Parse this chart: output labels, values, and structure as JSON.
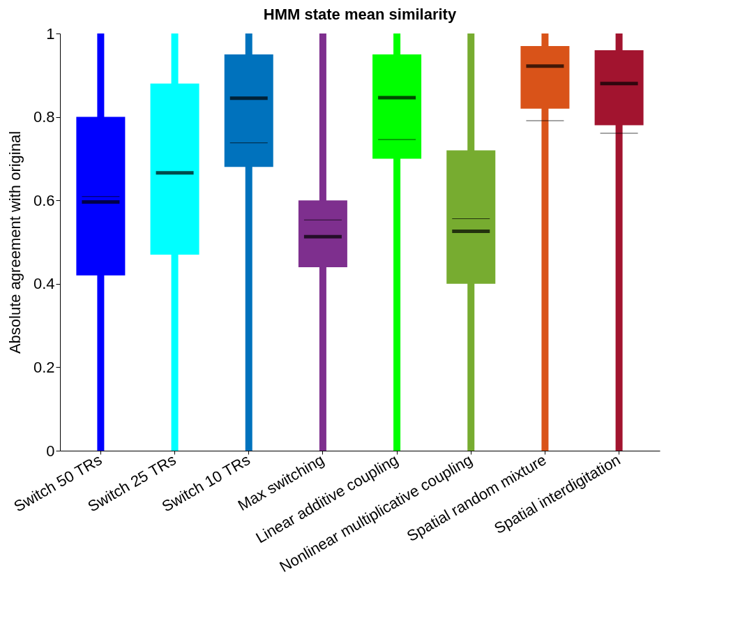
{
  "chart_data": {
    "type": "box",
    "title": "HMM state mean similarity",
    "ylabel": "Absolute agreement with original",
    "categories": [
      "Switch 50 TRs",
      "Switch 25 TRs",
      "Switch 10 TRs",
      "Max switching",
      "Linear additive coupling",
      "Nonlinear multiplicative coupling",
      "Spatial random mixture",
      "Spatial interdigitation"
    ],
    "colors": [
      "#0000ff",
      "#00ffff",
      "#0072bd",
      "#7e2f8e",
      "#00ff00",
      "#77ac30",
      "#d95319",
      "#a2142f"
    ],
    "boxes": [
      {
        "low": 0,
        "q1": 0.42,
        "median": 0.596,
        "q3": 0.8,
        "high": 1,
        "mean": 0.609
      },
      {
        "low": 0,
        "q1": 0.47,
        "median": 0.666,
        "q3": 0.88,
        "high": 1
      },
      {
        "low": 0,
        "q1": 0.68,
        "median": 0.845,
        "q3": 0.95,
        "high": 1,
        "mean": 0.738
      },
      {
        "low": 0,
        "q1": 0.44,
        "median": 0.513,
        "q3": 0.6,
        "high": 1,
        "mean": 0.553
      },
      {
        "low": 0,
        "q1": 0.7,
        "median": 0.846,
        "q3": 0.95,
        "high": 1,
        "mean": 0.746
      },
      {
        "low": 0,
        "q1": 0.4,
        "median": 0.526,
        "q3": 0.72,
        "high": 1,
        "mean": 0.556
      },
      {
        "low": 0,
        "q1": 0.82,
        "median": 0.922,
        "q3": 0.97,
        "high": 1,
        "mean": 0.791
      },
      {
        "low": 0,
        "q1": 0.78,
        "median": 0.88,
        "q3": 0.96,
        "high": 1,
        "mean": 0.761
      }
    ],
    "ylim": [
      0,
      1
    ],
    "yticks": [
      0,
      0.2,
      0.4,
      0.6,
      0.8,
      1
    ],
    "grid": false,
    "legend": false
  }
}
